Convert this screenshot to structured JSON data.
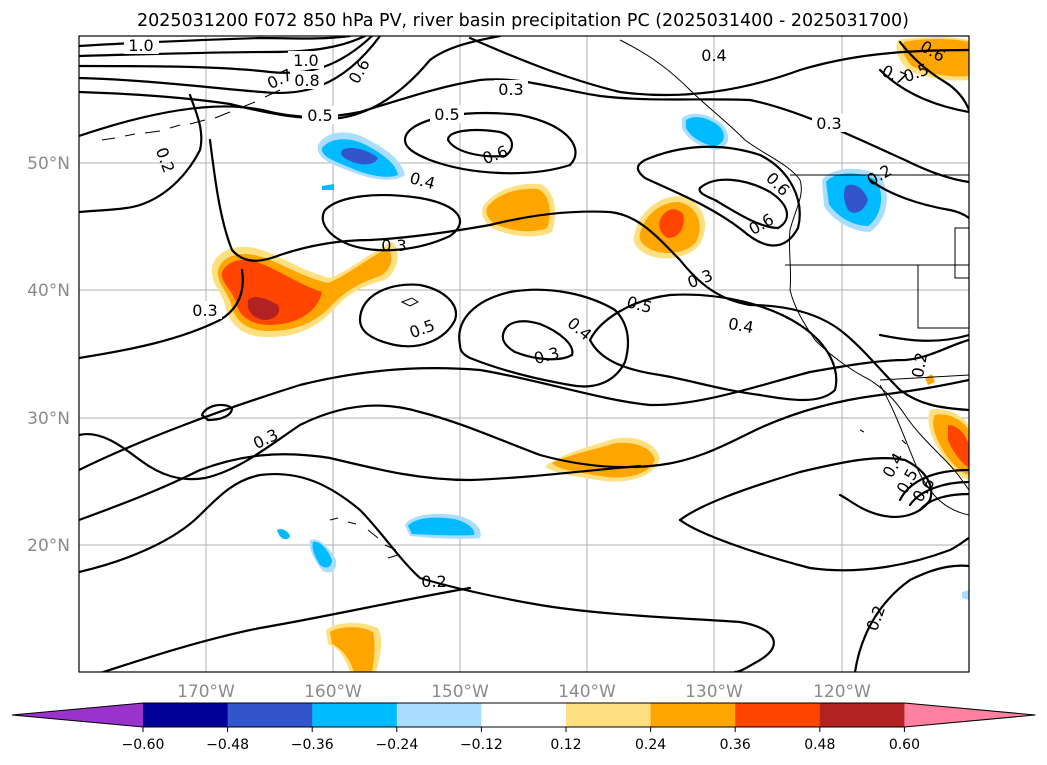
{
  "chart_data": {
    "type": "contour-map",
    "title": "2025031200 F072 850 hPa PV, river basin precipitation PC (2025031400 - 2025031700)",
    "longitude_ticks": [
      "170°W",
      "160°W",
      "150°W",
      "140°W",
      "130°W",
      "120°W"
    ],
    "latitude_ticks": [
      "50°N",
      "40°N",
      "30°N",
      "20°N"
    ],
    "lon_range": [
      -180,
      -110
    ],
    "lat_range": [
      10,
      60
    ],
    "grid": true,
    "contour_labels": [
      "1.0",
      "1.0",
      "0.8",
      "0.7",
      "0.6",
      "0.5",
      "0.5",
      "0.6",
      "0.3",
      "0.4",
      "0.3",
      "0.2",
      "0.4",
      "0.3",
      "0.3",
      "0.5",
      "0.4",
      "0.3",
      "0.5",
      "0.4",
      "0.3",
      "0.6",
      "0.6",
      "0.2",
      "0.5",
      "0.6",
      "0.7",
      "0.2",
      "0.4",
      "0.5",
      "0.6",
      "0.2",
      "0.2"
    ],
    "colorbar": {
      "ticks": [
        "−0.60",
        "−0.48",
        "−0.36",
        "−0.24",
        "−0.12",
        "0.12",
        "0.24",
        "0.36",
        "0.48",
        "0.60"
      ],
      "colors": [
        "#9933cc",
        "#000099",
        "#3355cc",
        "#00bbff",
        "#aaddff",
        "#ffffff",
        "#ffe080",
        "#ffa500",
        "#ff4500",
        "#b22222",
        "#ff80a0"
      ],
      "extend": "both"
    }
  }
}
